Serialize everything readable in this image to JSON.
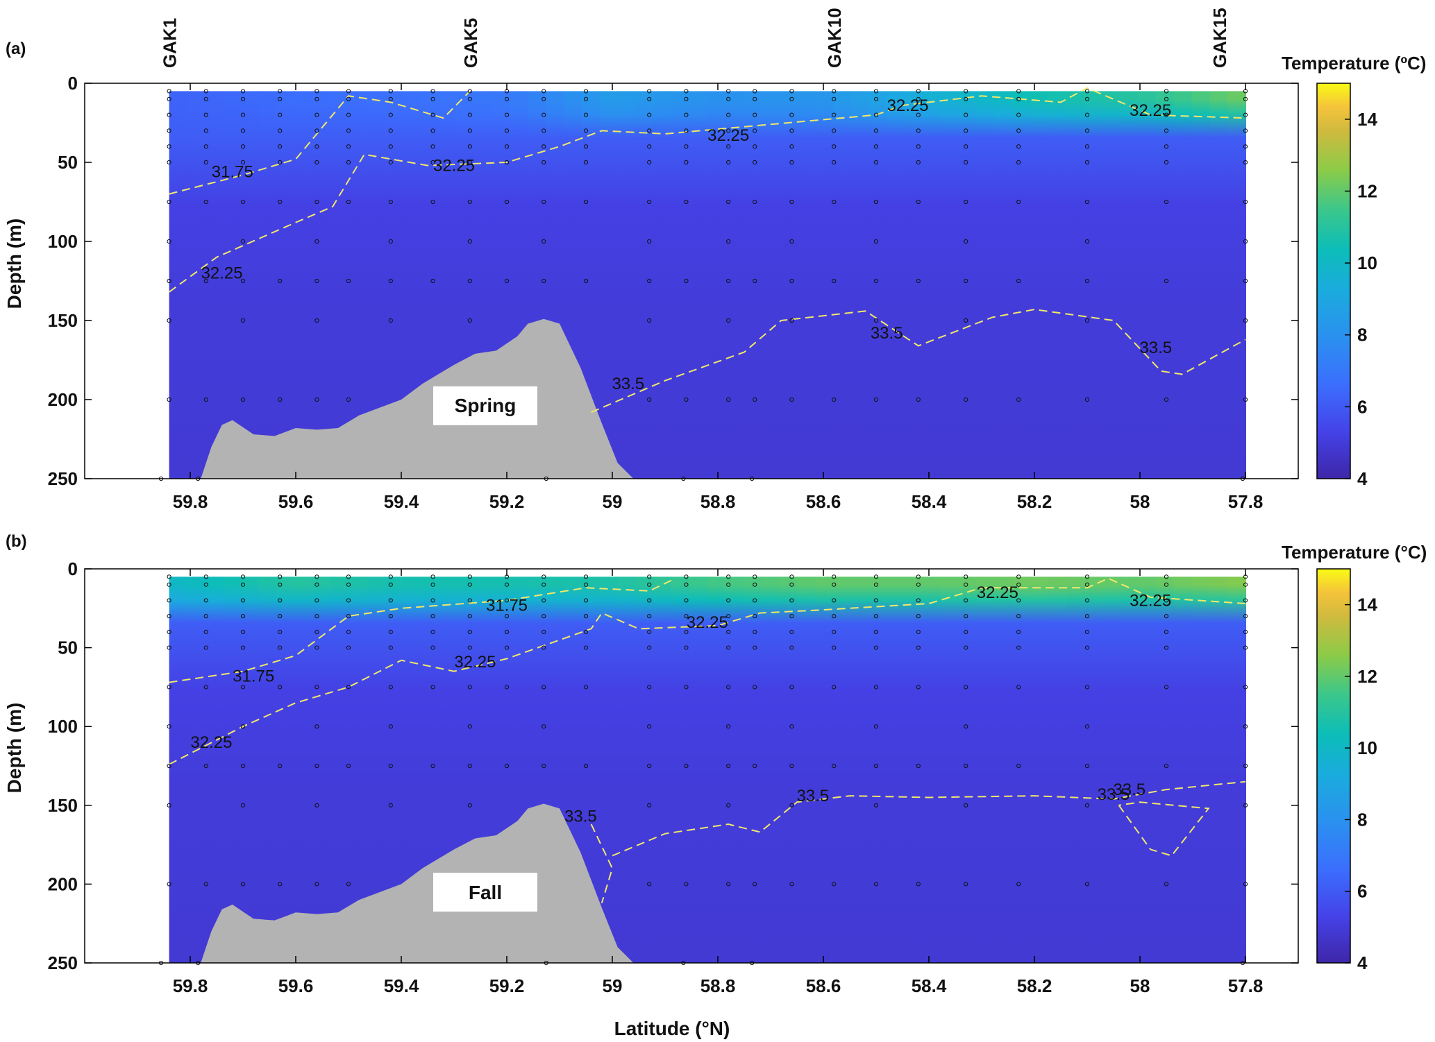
{
  "xlabel": "Latitude (°N)",
  "stations": [
    {
      "name": "GAK1",
      "lat": 59.84
    },
    {
      "name": "GAK5",
      "lat": 59.27
    },
    {
      "name": "GAK10",
      "lat": 58.58
    },
    {
      "name": "GAK15",
      "lat": 57.85
    }
  ],
  "chart_data": [
    {
      "type": "heatmap",
      "panel_label": "(a)",
      "season_label": "Spring",
      "colorbar_title": "Temperature (ºC)",
      "ylabel": "Depth (m)",
      "xlim": [
        60.0,
        57.7
      ],
      "ylim": [
        250,
        0
      ],
      "x_ticks": [
        59.8,
        59.6,
        59.4,
        59.2,
        59,
        58.8,
        58.6,
        58.4,
        58.2,
        58,
        57.8
      ],
      "x_tick_labels": [
        "59.8",
        "59.6",
        "59.4",
        "59.2",
        "59",
        "58.8",
        "58.6",
        "58.4",
        "58.2",
        "58",
        "57.8"
      ],
      "y_ticks": [
        0,
        50,
        100,
        150,
        200,
        250
      ],
      "y_tick_labels": [
        "0",
        "50",
        "100",
        "150",
        "200",
        "250"
      ],
      "colorbar_range": [
        4,
        15
      ],
      "colorbar_ticks": [
        4,
        6,
        8,
        10,
        12,
        14
      ],
      "colorbar_tick_labels": [
        "4",
        "6",
        "8",
        "10",
        "12",
        "14"
      ],
      "surface_temperature_profile": {
        "lat": [
          59.84,
          59.6,
          59.4,
          59.2,
          59.0,
          58.8,
          58.6,
          58.4,
          58.2,
          58.0,
          57.8
        ],
        "temp": [
          6.3,
          6.6,
          6.7,
          7.0,
          8.5,
          8.0,
          8.2,
          9.5,
          10.5,
          11.0,
          12.2
        ]
      },
      "contours": [
        {
          "label": "31.75",
          "points": [
            [
              59.84,
              70
            ],
            [
              59.7,
              58
            ],
            [
              59.6,
              48
            ],
            [
              59.5,
              8
            ],
            [
              59.42,
              12
            ],
            [
              59.32,
              22
            ],
            [
              59.27,
              5
            ]
          ],
          "label_positions": [
            [
              59.72,
              56
            ]
          ]
        },
        {
          "label": "32.25",
          "points": [
            [
              59.84,
              132
            ],
            [
              59.75,
              110
            ],
            [
              59.6,
              88
            ],
            [
              59.53,
              78
            ],
            [
              59.47,
              45
            ],
            [
              59.35,
              52
            ],
            [
              59.2,
              50
            ],
            [
              59.1,
              40
            ],
            [
              59.02,
              30
            ],
            [
              58.9,
              32
            ],
            [
              58.7,
              26
            ],
            [
              58.5,
              20
            ],
            [
              58.45,
              14
            ],
            [
              58.3,
              8
            ],
            [
              58.15,
              12
            ],
            [
              58.1,
              3
            ],
            [
              57.98,
              20
            ],
            [
              57.8,
              22
            ]
          ],
          "label_positions": [
            [
              59.74,
              120
            ],
            [
              59.3,
              52
            ],
            [
              58.78,
              33
            ],
            [
              58.44,
              14
            ],
            [
              57.98,
              17
            ]
          ]
        },
        {
          "label": "33.5",
          "points": [
            [
              59.04,
              208
            ],
            [
              58.9,
              188
            ],
            [
              58.75,
              170
            ],
            [
              58.68,
              150
            ],
            [
              58.52,
              144
            ],
            [
              58.42,
              166
            ],
            [
              58.28,
              148
            ],
            [
              58.2,
              143
            ],
            [
              58.05,
              150
            ],
            [
              57.96,
              182
            ],
            [
              57.92,
              184
            ],
            [
              57.8,
              162
            ]
          ],
          "label_positions": [
            [
              58.97,
              190
            ],
            [
              58.48,
              158
            ],
            [
              57.97,
              167
            ]
          ]
        }
      ]
    },
    {
      "type": "heatmap",
      "panel_label": "(b)",
      "season_label": "Fall",
      "colorbar_title": "Temperature (°C)",
      "ylabel": "Depth (m)",
      "xlim": [
        60.0,
        57.7
      ],
      "ylim": [
        250,
        0
      ],
      "x_ticks": [
        59.8,
        59.6,
        59.4,
        59.2,
        59,
        58.8,
        58.6,
        58.4,
        58.2,
        58,
        57.8
      ],
      "x_tick_labels": [
        "59.8",
        "59.6",
        "59.4",
        "59.2",
        "59",
        "58.8",
        "58.6",
        "58.4",
        "58.2",
        "58",
        "57.8"
      ],
      "y_ticks": [
        0,
        50,
        100,
        150,
        200,
        250
      ],
      "y_tick_labels": [
        "0",
        "50",
        "100",
        "150",
        "200",
        "250"
      ],
      "colorbar_range": [
        4,
        15
      ],
      "colorbar_ticks": [
        4,
        6,
        8,
        10,
        12,
        14
      ],
      "colorbar_tick_labels": [
        "4",
        "6",
        "8",
        "10",
        "12",
        "14"
      ],
      "surface_temperature_profile": {
        "lat": [
          59.84,
          59.6,
          59.4,
          59.2,
          59.0,
          58.8,
          58.6,
          58.4,
          58.2,
          58.0,
          57.8
        ],
        "temp": [
          10.0,
          11.0,
          10.6,
          10.6,
          10.8,
          11.6,
          12.0,
          12.0,
          12.2,
          12.0,
          12.5
        ]
      },
      "contours": [
        {
          "label": "31.75",
          "points": [
            [
              59.84,
              72
            ],
            [
              59.7,
              65
            ],
            [
              59.6,
              55
            ],
            [
              59.5,
              30
            ],
            [
              59.4,
              25
            ],
            [
              59.2,
              20
            ],
            [
              59.05,
              12
            ],
            [
              58.93,
              14
            ],
            [
              58.88,
              6
            ]
          ],
          "label_positions": [
            [
              59.68,
              68
            ],
            [
              59.2,
              23
            ]
          ]
        },
        {
          "label": "32.25",
          "points": [
            [
              59.84,
              124
            ],
            [
              59.7,
              100
            ],
            [
              59.6,
              85
            ],
            [
              59.5,
              75
            ],
            [
              59.4,
              58
            ],
            [
              59.3,
              65
            ],
            [
              59.2,
              57
            ],
            [
              59.04,
              38
            ],
            [
              59.02,
              28
            ],
            [
              58.95,
              38
            ],
            [
              58.8,
              36
            ],
            [
              58.72,
              28
            ],
            [
              58.6,
              26
            ],
            [
              58.4,
              22
            ],
            [
              58.3,
              12
            ],
            [
              58.1,
              12
            ],
            [
              58.06,
              6
            ],
            [
              57.98,
              18
            ],
            [
              57.8,
              22
            ]
          ],
          "label_positions": [
            [
              59.76,
              110
            ],
            [
              59.26,
              59
            ],
            [
              58.82,
              34
            ],
            [
              58.27,
              15
            ],
            [
              57.98,
              20
            ]
          ]
        },
        {
          "label": "33.5",
          "points": [
            [
              59.04,
              162
            ],
            [
              59.0,
              190
            ],
            [
              59.02,
              212
            ]
          ],
          "label_positions": [
            [
              59.06,
              157
            ]
          ]
        },
        {
          "label": "33.5",
          "points": [
            [
              59.0,
              182
            ],
            [
              58.9,
              168
            ],
            [
              58.78,
              162
            ],
            [
              58.72,
              167
            ],
            [
              58.65,
              148
            ],
            [
              58.55,
              144
            ],
            [
              58.4,
              145
            ],
            [
              58.2,
              144
            ],
            [
              58.05,
              146
            ],
            [
              57.95,
              140
            ],
            [
              57.8,
              135
            ]
          ],
          "label_positions": [
            [
              58.62,
              144
            ],
            [
              58.05,
              143
            ],
            [
              58.02,
              140
            ]
          ]
        },
        {
          "label": "33.5",
          "points": [
            [
              58.04,
              150
            ],
            [
              57.98,
              178
            ],
            [
              57.94,
              182
            ],
            [
              57.87,
              152
            ],
            [
              58.0,
              148
            ],
            [
              58.04,
              150
            ]
          ],
          "label_positions": []
        }
      ]
    }
  ]
}
